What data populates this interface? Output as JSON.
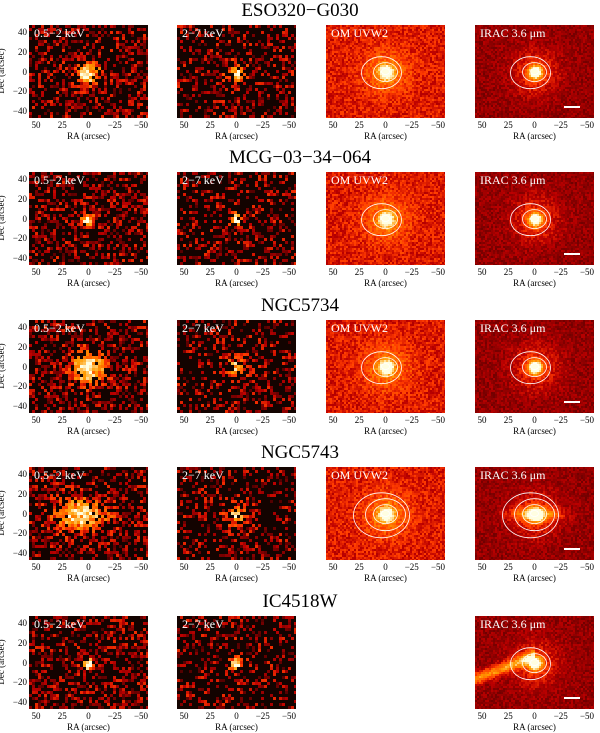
{
  "figure": {
    "axis": {
      "xlabel": "RA (arcsec)",
      "ylabel": "Dec (arcsec)",
      "xticks": [
        "50",
        "25",
        "0",
        "−25",
        "−50"
      ],
      "yticks": [
        "40",
        "20",
        "0",
        "−20",
        "−40"
      ]
    },
    "colors": {
      "background": "#130300",
      "contour": "#ffffff",
      "label": "#ffffff"
    },
    "rows": [
      {
        "name": "ESO320−G030",
        "panels": [
          {
            "label": "0.5−2 keV",
            "kind": "xsoft",
            "source": "compact"
          },
          {
            "label": "2−7 keV",
            "kind": "xhard",
            "source": "weak"
          },
          {
            "label": "OM UVW2",
            "kind": "uv",
            "contours": 3,
            "scalebar": false
          },
          {
            "label": "IRAC 3.6 μm",
            "kind": "ir",
            "contours": 3,
            "scalebar": true
          }
        ]
      },
      {
        "name": "MCG−03−34−064",
        "panels": [
          {
            "label": "0.5−2 keV",
            "kind": "xsoft",
            "source": "point"
          },
          {
            "label": "2−7 keV",
            "kind": "xhard",
            "source": "point"
          },
          {
            "label": "OM UVW2",
            "kind": "uv",
            "contours": 3,
            "scalebar": false
          },
          {
            "label": "IRAC 3.6 μm",
            "kind": "ir",
            "contours": 3,
            "scalebar": true
          }
        ]
      },
      {
        "name": "NGC5734",
        "panels": [
          {
            "label": "0.5−2 keV",
            "kind": "xsoft",
            "source": "extended"
          },
          {
            "label": "2−7 keV",
            "kind": "xhard",
            "source": "weak"
          },
          {
            "label": "OM UVW2",
            "kind": "uv",
            "contours": 3,
            "scalebar": false
          },
          {
            "label": "IRAC 3.6 μm",
            "kind": "ir",
            "contours": 3,
            "scalebar": true
          }
        ]
      },
      {
        "name": "NGC5743",
        "panels": [
          {
            "label": "0.5−2 keV",
            "kind": "xsoft",
            "source": "diffuse"
          },
          {
            "label": "2−7 keV",
            "kind": "xhard",
            "source": "weak"
          },
          {
            "label": "OM UVW2",
            "kind": "uv",
            "contours": 4,
            "scalebar": false
          },
          {
            "label": "IRAC 3.6 μm",
            "kind": "ir",
            "contours": 4,
            "scalebar": true
          }
        ]
      },
      {
        "name": "IC4518W",
        "panels": [
          {
            "label": "0.5−2 keV",
            "kind": "xsoft",
            "source": "point"
          },
          {
            "label": "2−7 keV",
            "kind": "xhard",
            "source": "point"
          },
          null,
          {
            "label": "IRAC 3.6 μm",
            "kind": "ir",
            "contours": 3,
            "scalebar": true
          }
        ]
      }
    ]
  }
}
